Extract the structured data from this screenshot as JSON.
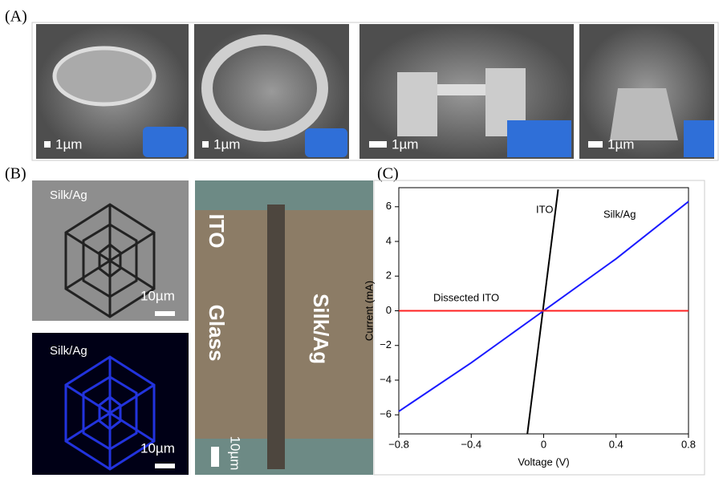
{
  "panel_a": {
    "label": "(A)",
    "scale_bars": [
      "1µm",
      "1µm",
      "1µm",
      "1µm"
    ]
  },
  "panel_b": {
    "label": "(B)",
    "images": [
      {
        "caption": "Silk/Ag",
        "scale_bar": "10µm"
      },
      {
        "caption": "Silk/Ag",
        "scale_bar": "10µm"
      }
    ],
    "photo": {
      "labels": [
        "ITO",
        "Glass",
        "Silk/Ag"
      ],
      "scale_bar": "10µm"
    }
  },
  "panel_c": {
    "label": "(C)"
  },
  "chart_data": {
    "type": "line",
    "x_label": "Voltage (V)",
    "y_label": "Current (mA)",
    "xlim": [
      -0.8,
      0.8
    ],
    "ylim": [
      -7.1,
      7.1
    ],
    "xticks": [
      {
        "value": -0.8,
        "label": "−0.8"
      },
      {
        "value": -0.4,
        "label": "−0.4"
      },
      0,
      0.4,
      0.8
    ],
    "yticks": [
      {
        "value": -6,
        "label": "−6"
      },
      {
        "value": -4,
        "label": "−4"
      },
      {
        "value": -2,
        "label": "−2"
      },
      0,
      2,
      4,
      6
    ],
    "series": [
      {
        "name": "ITO",
        "color": "#000000",
        "x": [
          -0.09,
          0.08
        ],
        "values": [
          -7.1,
          7.0
        ]
      },
      {
        "name": "Silk/Ag",
        "color": "#1a1aff",
        "x": [
          -0.8,
          -0.4,
          0,
          0.4,
          0.8
        ],
        "values": [
          -5.8,
          -3.0,
          0,
          3.0,
          6.3
        ]
      },
      {
        "name": "Dissected ITO",
        "color": "#ff2020",
        "x": [
          -0.8,
          0.8
        ],
        "values": [
          0,
          0
        ]
      }
    ]
  }
}
